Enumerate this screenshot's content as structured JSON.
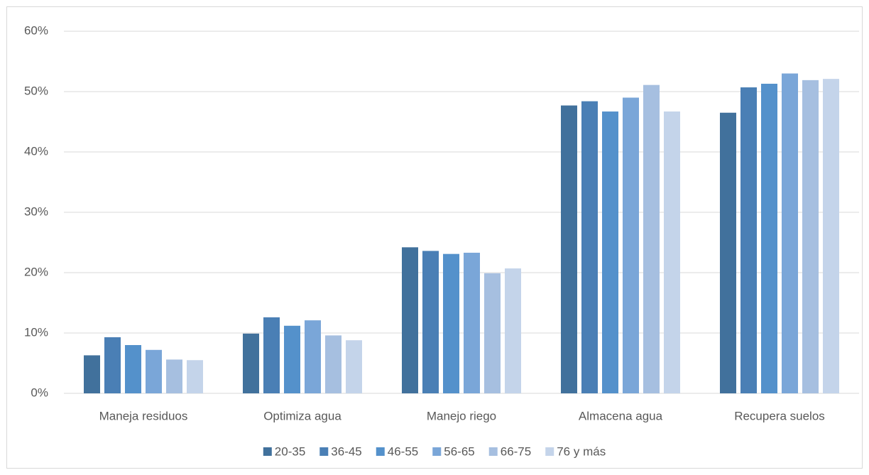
{
  "chart_data": {
    "type": "bar",
    "categories": [
      "Maneja residuos",
      "Optimiza agua",
      "Manejo riego",
      "Almacena agua",
      "Recupera suelos"
    ],
    "series": [
      {
        "name": "20-35",
        "color": "#41719c",
        "values": [
          6.3,
          9.9,
          24.2,
          47.7,
          46.5
        ]
      },
      {
        "name": "36-45",
        "color": "#4a7fb5",
        "values": [
          9.3,
          12.6,
          23.6,
          48.4,
          50.7
        ]
      },
      {
        "name": "46-55",
        "color": "#5491cb",
        "values": [
          8.0,
          11.2,
          23.1,
          46.7,
          51.3
        ]
      },
      {
        "name": "56-65",
        "color": "#7aa6d8",
        "values": [
          7.2,
          12.1,
          23.3,
          49.0,
          53.0
        ]
      },
      {
        "name": "66-75",
        "color": "#a6bfe0",
        "values": [
          5.6,
          9.6,
          19.9,
          51.1,
          51.9
        ]
      },
      {
        "name": "76 y más",
        "color": "#c4d4ea",
        "values": [
          5.5,
          8.8,
          20.7,
          46.7,
          52.1
        ]
      }
    ],
    "ylim": [
      0,
      60
    ],
    "yticks": [
      {
        "value": 0,
        "label": "0%"
      },
      {
        "value": 10,
        "label": "10%"
      },
      {
        "value": 20,
        "label": "20%"
      },
      {
        "value": 30,
        "label": "30%"
      },
      {
        "value": 40,
        "label": "40%"
      },
      {
        "value": 50,
        "label": "50%"
      },
      {
        "value": 60,
        "label": "60%"
      }
    ],
    "grid": true,
    "legend": "bottom"
  }
}
